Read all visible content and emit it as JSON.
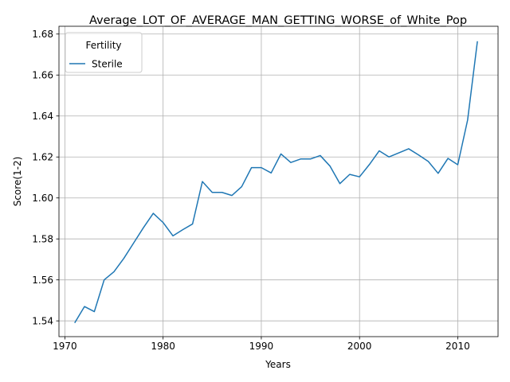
{
  "chart_data": {
    "type": "line",
    "title": "Average_LOT_OF_AVERAGE_MAN_GETTING_WORSE_of_White_Pop",
    "xlabel": "Years",
    "ylabel": "Score(1-2)",
    "xlim": [
      1969.4,
      2014.1
    ],
    "ylim": [
      1.5323,
      1.6838
    ],
    "x_ticks": [
      1970,
      1980,
      1990,
      2000,
      2010
    ],
    "y_ticks": [
      1.54,
      1.56,
      1.58,
      1.6,
      1.62,
      1.64,
      1.66,
      1.68
    ],
    "y_tick_labels": [
      "1.54",
      "1.56",
      "1.58",
      "1.60",
      "1.62",
      "1.64",
      "1.66",
      "1.68"
    ],
    "grid": true,
    "legend": {
      "title": "Fertility",
      "position": "top-left"
    },
    "series": [
      {
        "name": "Sterile",
        "color": "#1f77b4",
        "x": [
          1971,
          1972,
          1973,
          1974,
          1975,
          1976,
          1977,
          1978,
          1979,
          1980,
          1981,
          1982,
          1983,
          1984,
          1985,
          1986,
          1987,
          1988,
          1989,
          1990,
          1991,
          1992,
          1993,
          1994,
          1995,
          1996,
          1997,
          1998,
          1999,
          2000,
          2001,
          2002,
          2003,
          2004,
          2005,
          2006,
          2007,
          2008,
          2009,
          2010,
          2011,
          2012
        ],
        "y": [
          1.539,
          1.547,
          1.5445,
          1.56,
          1.564,
          1.5705,
          1.578,
          1.5855,
          1.5925,
          1.588,
          1.5815,
          1.5845,
          1.5873,
          1.608,
          1.6027,
          1.6027,
          1.6012,
          1.6055,
          1.6148,
          1.6148,
          1.6122,
          1.6215,
          1.6173,
          1.619,
          1.619,
          1.6207,
          1.6155,
          1.607,
          1.6115,
          1.6103,
          1.6163,
          1.623,
          1.62,
          1.622,
          1.624,
          1.621,
          1.6178,
          1.612,
          1.6193,
          1.6162,
          1.638,
          1.6765
        ]
      }
    ]
  }
}
